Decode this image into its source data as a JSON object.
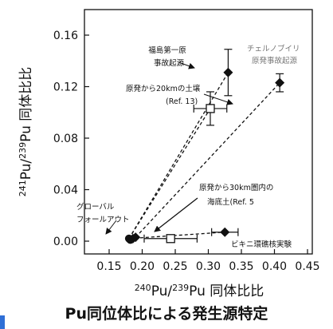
{
  "chart_data": {
    "type": "scatter",
    "title": "",
    "xlabel": {
      "sup1": "240",
      "el1": "Pu/",
      "sup2": "239",
      "el2": "Pu 同体比比"
    },
    "ylabel": {
      "sup1": "241",
      "el1": "Pu/",
      "sup2": "239",
      "el2": "Pu 同体比比"
    },
    "xlim": [
      0.13,
      0.45
    ],
    "ylim": [
      -0.02,
      0.19
    ],
    "xticks": [
      {
        "v": 0.15,
        "label": "0.15"
      },
      {
        "v": 0.2,
        "label": "0.20"
      },
      {
        "v": 0.25,
        "label": "0.25"
      },
      {
        "v": 0.3,
        "label": "0.30"
      },
      {
        "v": 0.35,
        "label": "0.35"
      },
      {
        "v": 0.4,
        "label": "0.40"
      },
      {
        "v": 0.45,
        "label": "0.45"
      }
    ],
    "yticks": [
      {
        "v": 0.0,
        "label": "0.00"
      },
      {
        "v": 0.04,
        "label": "0.04"
      },
      {
        "v": 0.08,
        "label": "0.08"
      },
      {
        "v": 0.12,
        "label": "0.12"
      },
      {
        "v": 0.16,
        "label": "0.16"
      }
    ],
    "points": [
      {
        "name": "fukushima",
        "x": 0.33,
        "y": 0.131,
        "marker": "diamond",
        "yerr": 0.018,
        "xerr": 0
      },
      {
        "name": "chernobyl",
        "x": 0.408,
        "y": 0.123,
        "marker": "diamond",
        "yerr": 0.007,
        "xerr": 0
      },
      {
        "name": "soil-20km",
        "x": 0.303,
        "y": 0.103,
        "marker": "square",
        "yerr": 0.013,
        "xerr": 0.025
      },
      {
        "name": "bikini",
        "x": 0.325,
        "y": 0.007,
        "marker": "diamond",
        "yerr": 0,
        "xerr": 0.02
      },
      {
        "name": "sea-soil-30km",
        "x": 0.243,
        "y": 0.002,
        "marker": "square",
        "yerr": 0,
        "xerr": 0.04
      },
      {
        "name": "global-1",
        "x": 0.18,
        "y": 0.002,
        "marker": "circle",
        "yerr": 0,
        "xerr": 0
      },
      {
        "name": "global-2",
        "x": 0.182,
        "y": 0.001,
        "marker": "circle",
        "yerr": 0,
        "xerr": 0
      },
      {
        "name": "global-3",
        "x": 0.186,
        "y": 0.002,
        "marker": "diamond",
        "yerr": 0,
        "xerr": 0
      },
      {
        "name": "global-4",
        "x": 0.19,
        "y": 0.003,
        "marker": "diamond",
        "yerr": 0,
        "xerr": 0
      }
    ],
    "lines": [
      {
        "from": [
          0.18,
          0.002
        ],
        "to": [
          0.33,
          0.131
        ]
      },
      {
        "from": [
          0.18,
          0.002
        ],
        "to": [
          0.303,
          0.103
        ]
      },
      {
        "from": [
          0.19,
          0.003
        ],
        "to": [
          0.408,
          0.123
        ]
      },
      {
        "from": [
          0.18,
          0.002
        ],
        "to": [
          0.325,
          0.007
        ]
      }
    ],
    "annotations": [
      {
        "key": "fukushima_1",
        "text": "福島第一原"
      },
      {
        "key": "fukushima_2",
        "text": "事故起源"
      },
      {
        "key": "chernobyl_1",
        "text": "チェルノブイリ"
      },
      {
        "key": "chernobyl_2",
        "text": "原発事故起源"
      },
      {
        "key": "soil20_1",
        "text": "原発から20kmの土壌"
      },
      {
        "key": "soil20_2",
        "text": "(Ref. 13)"
      },
      {
        "key": "sea30_1",
        "text": "原発から30km圏内の"
      },
      {
        "key": "sea30_2",
        "text": "海底土(Ref. 5"
      },
      {
        "key": "global_1",
        "text": "グローバル"
      },
      {
        "key": "global_2",
        "text": "フォールアウト"
      },
      {
        "key": "bikini",
        "text": "ビキニ環礁核実験"
      }
    ]
  },
  "caption": "Pu同位体比による発生源特定"
}
